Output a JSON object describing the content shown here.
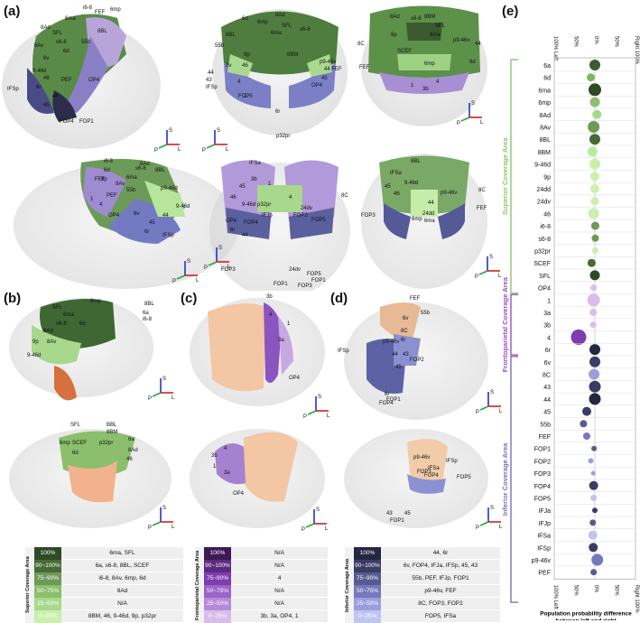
{
  "panels": {
    "a": "(a)",
    "b": "(b)",
    "c": "(c)",
    "d": "(d)",
    "e": "(e)"
  },
  "labels": {
    "a1": [
      "i6-8",
      "6mp",
      "FEF",
      "6ma",
      "8Ad",
      "SFL",
      "s6-8",
      "8BL",
      "8Av",
      "55b",
      "6d",
      "6v",
      "9-46d",
      "IFSp",
      "46",
      "6r",
      "PEF",
      "OP4",
      "44",
      "45",
      "FOP4",
      "FOP1"
    ],
    "a2": [
      "6d",
      "8Ad",
      "6mp",
      "SFL",
      "6ma",
      "8BL",
      "s6-8",
      "9p",
      "55b",
      "6v",
      "46",
      "8BM",
      "p9-46v",
      "44",
      "43",
      "IFSp",
      "FOP5",
      "OP4",
      "p32pr",
      "44 FEF",
      "45",
      "6r",
      "4",
      "1"
    ],
    "a3": [
      "8Ad",
      "s6-8",
      "8BM",
      "SFL",
      "6ma",
      "8C",
      "44",
      "p9-46v",
      "9p",
      "SCEF",
      "FEF",
      "6mp",
      "6d",
      "1",
      "3b",
      "4"
    ],
    "a4": [
      "i6-8",
      "8Ad",
      "6d",
      "8BL",
      "s6-8",
      "9p",
      "6ma",
      "8Av",
      "55b",
      "p9-46d",
      "FEF",
      "PEF",
      "9-46d",
      "OP4",
      "6v",
      "6r",
      "IFSp",
      "44",
      "45",
      "4",
      "1"
    ],
    "a5": [
      "IFSa",
      "45",
      "3b",
      "1",
      "9-46d",
      "46",
      "p32pr",
      "24dv",
      "4",
      "IFJp",
      "OP4",
      "FOP4",
      "FOP2",
      "FOP5",
      "6r",
      "44",
      "8C",
      "FOP3",
      "FOP1",
      "24dv",
      "FOP5",
      "FOP3",
      "FOP1"
    ],
    "a6": [
      "8BL",
      "IFSa",
      "45",
      "46",
      "9-46d",
      "p9-46v",
      "24dd",
      "FEF",
      "FOP3",
      "6mp",
      "6ma",
      "8C",
      "44"
    ],
    "b1": [
      "6mp",
      "6ma",
      "SFL",
      "8BL",
      "s6-8",
      "8Ad",
      "8Av",
      "9p",
      "6d",
      "9-46d",
      "6a",
      "i6-8"
    ],
    "b2": [
      "SFL",
      "BBL",
      "SCEF",
      "8BM",
      "6mp",
      "p32pr",
      "6d",
      "6a",
      "8Ad",
      "46"
    ],
    "c": [
      "3b",
      "4",
      "1",
      "3a",
      "OP4",
      "3b",
      "4",
      "1",
      "3a",
      "OP4"
    ],
    "d1": [
      "FEF",
      "55b",
      "6v",
      "8C",
      "p9-46v",
      "6r",
      "IFSp",
      "44",
      "43",
      "FOP2",
      "45",
      "6r",
      "FOP1",
      "FOP4"
    ],
    "d2": [
      "p9-46v",
      "IFSp",
      "IFSa",
      "FOP5",
      "FOP3",
      "FOP4",
      "43",
      "FOP1",
      "45"
    ]
  },
  "legends": {
    "superior": {
      "title": "Superior Coverage Area",
      "rows": [
        {
          "pct": "100%",
          "desc": "6ma, SFL",
          "color": "#2e4a25"
        },
        {
          "pct": "90~100%",
          "desc": "6a, s6-8, 8BL, SCEF",
          "color": "#466b36"
        },
        {
          "pct": "75~90%",
          "desc": "i6-8, 8Av, 6mp, 6d",
          "color": "#6d9a56"
        },
        {
          "pct": "50~75%",
          "desc": "8Ad",
          "color": "#8cbf6e"
        },
        {
          "pct": "25~50%",
          "desc": "N/A",
          "color": "#aad88c"
        },
        {
          "pct": "0~25%",
          "desc": "8BM, 46, 9-46d, 9p, p32pr",
          "color": "#c9f0ad"
        }
      ]
    },
    "frontoparietal": {
      "title": "Frontoparietal Coverage Area",
      "rows": [
        {
          "pct": "100%",
          "desc": "N/A",
          "color": "#3c1a55"
        },
        {
          "pct": "90~100%",
          "desc": "N/A",
          "color": "#5c2b80"
        },
        {
          "pct": "75~90%",
          "desc": "4",
          "color": "#7e3eae"
        },
        {
          "pct": "50~75%",
          "desc": "N/A",
          "color": "#9c63c8"
        },
        {
          "pct": "25~50%",
          "desc": "N/A",
          "color": "#b78ad8"
        },
        {
          "pct": "0~25%",
          "desc": "3b, 3a, OP4, 1",
          "color": "#d8bdec"
        }
      ]
    },
    "inferior": {
      "title": "Inferior Coverage Area",
      "rows": [
        {
          "pct": "100%",
          "desc": "44, 6r",
          "color": "#25263f"
        },
        {
          "pct": "90~100%",
          "desc": "6v, FOP4, IFJa, IFSp, 45, 43",
          "color": "#3a3d63"
        },
        {
          "pct": "75~90%",
          "desc": "55b, PEF, IFJp, FOP1",
          "color": "#565b91"
        },
        {
          "pct": "50~75%",
          "desc": "p9-46v, FEF",
          "color": "#7479bd"
        },
        {
          "pct": "25~50%",
          "desc": "8C, FOP3, FOP2",
          "color": "#9a9fdc"
        },
        {
          "pct": "0~25%",
          "desc": "FOP5, IFSa",
          "color": "#c0c4f2"
        }
      ]
    }
  },
  "axes_glyphs": {
    "s": "S",
    "l": "L",
    "p": "P"
  },
  "chart_data": {
    "type": "scatter",
    "xlabel": "Population probability difference between left and right",
    "x_ticks_top": [
      "100% Left",
      "50%",
      "0%",
      "50%",
      "Right 100%"
    ],
    "x_ticks_bottom": [
      "100% Left",
      "50%",
      "0%",
      "50%",
      "Right 100%"
    ],
    "xlim": [
      -100,
      100
    ],
    "groups": [
      {
        "name": "Superior Coverage Area",
        "color": "#8cc672",
        "start": 0,
        "end": 18
      },
      {
        "name": "Frontoparietal Coverage Area",
        "color": "#9b4fc4",
        "start": 19,
        "end": 23
      },
      {
        "name": "Inferior Coverage Area",
        "color": "#7175b8",
        "start": 24,
        "end": 43
      }
    ],
    "regions": [
      "6a",
      "6d",
      "6ma",
      "6mp",
      "8Ad",
      "8Av",
      "8BL",
      "8BM",
      "9-46d",
      "9p",
      "24dd",
      "24dv",
      "46",
      "i6-8",
      "s6-8",
      "p32pr",
      "SCEF",
      "SFL",
      "OP4",
      "1",
      "3a",
      "3b",
      "4",
      "6r",
      "6v",
      "8C",
      "43",
      "44",
      "45",
      "55b",
      "FEF",
      "FOP1",
      "FOP2",
      "FOP3",
      "FOP4",
      "FOP5",
      "IFJa",
      "IFJp",
      "IFSa",
      "IFSp",
      "p9-46v",
      "PEF"
    ],
    "values": [
      0,
      -10,
      0,
      0,
      5,
      -3,
      0,
      -6,
      0,
      0,
      0,
      0,
      -3,
      1,
      1,
      1,
      -8,
      0,
      -3,
      -3,
      -4,
      -4,
      -40,
      0,
      0,
      -2,
      0,
      0,
      -20,
      -28,
      -20,
      -2,
      -10,
      -4,
      -3,
      -3,
      0,
      -5,
      -5,
      -4,
      6,
      -3
    ],
    "sizes": [
      12,
      9,
      14,
      11,
      10,
      13,
      12,
      11,
      12,
      10,
      10,
      9,
      12,
      9,
      8,
      7,
      9,
      11,
      7,
      14,
      8,
      7,
      17,
      12,
      12,
      12,
      13,
      13,
      10,
      8,
      8,
      6,
      6,
      5,
      10,
      7,
      6,
      7,
      10,
      10,
      13,
      7
    ],
    "colors": [
      "#3c5e2f",
      "#7ab960",
      "#2e4a25",
      "#8cbf6e",
      "#a5d98a",
      "#6d9a56",
      "#466b36",
      "#b8ec9d",
      "#c9f0ad",
      "#c9f0ad",
      "#c9f0ad",
      "#c9f0ad",
      "#c9f0ad",
      "#6d9a56",
      "#6d9a56",
      "#c9f0ad",
      "#466b36",
      "#2e4a25",
      "#d8bdec",
      "#d8bdec",
      "#d8bdec",
      "#d8bdec",
      "#7e3eae",
      "#25263f",
      "#3a3d63",
      "#9a9fdc",
      "#3a3d63",
      "#25263f",
      "#3a3d63",
      "#565b91",
      "#7479bd",
      "#565b91",
      "#9a9fdc",
      "#9a9fdc",
      "#3a3d63",
      "#c0c4f2",
      "#3a3d63",
      "#565b91",
      "#c0c4f2",
      "#3a3d63",
      "#7479bd",
      "#565b91"
    ]
  }
}
